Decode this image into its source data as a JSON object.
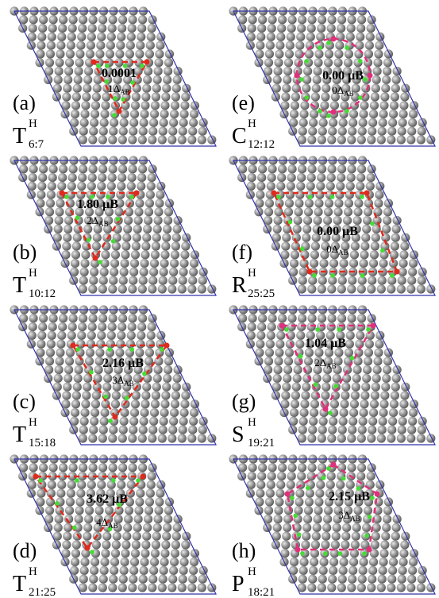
{
  "panels": [
    {
      "label": "(a)",
      "symbol": "T",
      "sup": "H",
      "sub": "6:7",
      "moment": "0.0001",
      "delta": "1Δ",
      "delta_sub": "AB"
    },
    {
      "label": "(b)",
      "symbol": "T",
      "sup": "H",
      "sub": "10:12",
      "moment": "1.80 μB",
      "delta": "2Δ",
      "delta_sub": "AB"
    },
    {
      "label": "(c)",
      "symbol": "T",
      "sup": "H",
      "sub": "15:18",
      "moment": "2.16 μB",
      "delta": "3Δ",
      "delta_sub": "AB"
    },
    {
      "label": "(d)",
      "symbol": "T",
      "sup": "H",
      "sub": "21:25",
      "moment": "3.62 μB",
      "delta": "4Δ",
      "delta_sub": "AB"
    },
    {
      "label": "(e)",
      "symbol": "C",
      "sup": "H",
      "sub": "12:12",
      "moment": "0.00 μB",
      "delta": "0Δ",
      "delta_sub": "AB"
    },
    {
      "label": "(f)",
      "symbol": "R",
      "sup": "H",
      "sub": "25:25",
      "moment": "0.00 μB",
      "delta": "0Δ",
      "delta_sub": "AB"
    },
    {
      "label": "(g)",
      "symbol": "S",
      "sup": "H",
      "sub": "19:21",
      "moment": "1.04 μB",
      "delta": "2Δ",
      "delta_sub": "AB"
    },
    {
      "label": "(h)",
      "symbol": "P",
      "sup": "H",
      "sub": "18:21",
      "moment": "2.15 μB",
      "delta": "3Δ",
      "delta_sub": "AB"
    }
  ]
}
